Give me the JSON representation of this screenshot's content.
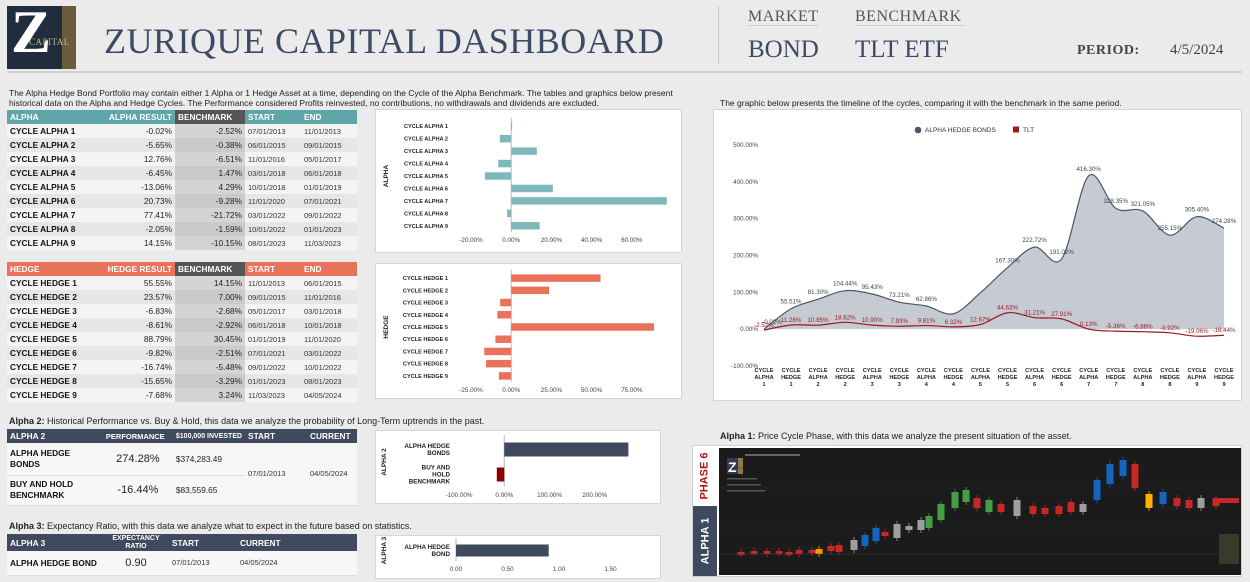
{
  "header": {
    "logo_letter": "Z",
    "logo_sub": "CAPITAL",
    "title": "ZURIQUE CAPITAL DASHBOARD",
    "market_label": "MARKET",
    "market_value": "BOND",
    "benchmark_label": "BENCHMARK",
    "benchmark_value": "TLT ETF",
    "period_label": "PERIOD:",
    "period_value": "4/5/2024"
  },
  "intro": "The Alpha Hedge Bond Portfolio may contain either 1 Alpha or 1 Hedge Asset at a time, depending on the Cycle of the Alpha Benchmark. The tables and graphics below present historical data on the Alpha and Hedge Cycles. The Performance considered Profits reinvested, no contributions, no withdrawals and dividends are excluded.",
  "timeline_intro": "The graphic below presents the timeline of the cycles, comparing it with the benchmark in the same period.",
  "alpha_table": {
    "headers": [
      "ALPHA",
      "ALPHA RESULT",
      "BENCHMARK",
      "START",
      "END"
    ],
    "rows": [
      {
        "name": "CYCLE ALPHA 1",
        "result": "-0.02%",
        "bench": "-2.52%",
        "start": "07/01/2013",
        "end": "11/01/2013"
      },
      {
        "name": "CYCLE ALPHA 2",
        "result": "-5.65%",
        "bench": "-0.38%",
        "start": "06/01/2015",
        "end": "09/01/2015"
      },
      {
        "name": "CYCLE ALPHA 3",
        "result": "12.76%",
        "bench": "-6.51%",
        "start": "11/01/2016",
        "end": "05/01/2017"
      },
      {
        "name": "CYCLE ALPHA 4",
        "result": "-6.45%",
        "bench": "1.47%",
        "start": "03/01/2018",
        "end": "06/01/2018"
      },
      {
        "name": "CYCLE ALPHA 5",
        "result": "-13.06%",
        "bench": "4.29%",
        "start": "10/01/2018",
        "end": "01/01/2019"
      },
      {
        "name": "CYCLE ALPHA 6",
        "result": "20.73%",
        "bench": "-9.28%",
        "start": "11/01/2020",
        "end": "07/01/2021"
      },
      {
        "name": "CYCLE ALPHA 7",
        "result": "77.41%",
        "bench": "-21.72%",
        "start": "03/01/2022",
        "end": "09/01/2022"
      },
      {
        "name": "CYCLE ALPHA 8",
        "result": "-2.05%",
        "bench": "-1.59%",
        "start": "10/01/2022",
        "end": "01/01/2023"
      },
      {
        "name": "CYCLE ALPHA 9",
        "result": "14.15%",
        "bench": "-10.15%",
        "start": "08/01/2023",
        "end": "11/03/2023"
      }
    ]
  },
  "hedge_table": {
    "headers": [
      "HEDGE",
      "HEDGE RESULT",
      "BENCHMARK",
      "START",
      "END"
    ],
    "rows": [
      {
        "name": "CYCLE HEDGE 1",
        "result": "55.55%",
        "bench": "14.15%",
        "start": "11/01/2013",
        "end": "06/01/2015"
      },
      {
        "name": "CYCLE HEDGE 2",
        "result": "23.57%",
        "bench": "7.00%",
        "start": "09/01/2015",
        "end": "11/01/2016"
      },
      {
        "name": "CYCLE HEDGE 3",
        "result": "-6.83%",
        "bench": "-2.68%",
        "start": "05/01/2017",
        "end": "03/01/2018"
      },
      {
        "name": "CYCLE HEDGE 4",
        "result": "-8.61%",
        "bench": "-2.92%",
        "start": "06/01/2018",
        "end": "10/01/2018"
      },
      {
        "name": "CYCLE HEDGE 5",
        "result": "88.79%",
        "bench": "30.45%",
        "start": "01/01/2019",
        "end": "11/01/2020"
      },
      {
        "name": "CYCLE HEDGE 6",
        "result": "-9.82%",
        "bench": "-2.51%",
        "start": "07/01/2021",
        "end": "03/01/2022"
      },
      {
        "name": "CYCLE HEDGE 7",
        "result": "-16.74%",
        "bench": "-5.48%",
        "start": "09/01/2022",
        "end": "10/01/2022"
      },
      {
        "name": "CYCLE HEDGE 8",
        "result": "-15.65%",
        "bench": "-3.29%",
        "start": "01/01/2023",
        "end": "08/01/2023"
      },
      {
        "name": "CYCLE HEDGE 9",
        "result": "-7.68%",
        "bench": "3.24%",
        "start": "11/03/2023",
        "end": "04/05/2024"
      }
    ]
  },
  "alpha2": {
    "title_bold": "Alpha 2:",
    "title_rest": " Historical Performance vs. Buy & Hold, this data we analyze the probability of Long-Term uptrends in the past.",
    "headers": [
      "ALPHA 2",
      "PERFORMANCE",
      "$100,000 INVESTED",
      "START",
      "CURRENT"
    ],
    "rows": [
      {
        "name": "ALPHA HEDGE BONDS",
        "perf": "274.28%",
        "invested": "$374,283.49"
      },
      {
        "name": "BUY AND HOLD BENCHMARK",
        "perf": "-16.44%",
        "invested": "$83,559.65"
      }
    ],
    "start": "07/01/2013",
    "current": "04/05/2024"
  },
  "alpha3": {
    "title_bold": "Alpha 3:",
    "title_rest": " Expectancy Ratio, with this data we analyze what to expect in the future based on statistics.",
    "headers": [
      "ALPHA 3",
      "EXPECTANCY RATIO",
      "START",
      "CURRENT"
    ],
    "row": {
      "name": "ALPHA HEDGE BOND",
      "ratio": "0.90",
      "start": "07/01/2013",
      "current": "04/05/2024"
    }
  },
  "alpha1": {
    "title_bold": "Alpha 1:",
    "title_rest": " Price Cycle Phase, with this data we analyze the present situation of the asset.",
    "phase_label": "PHASE 6",
    "alpha_label": "ALPHA 1"
  },
  "colors": {
    "teal": "#7fb8bb",
    "coral": "#e8735a",
    "navy": "#3f4a5e",
    "area": "#c5cad3",
    "area_line": "#4b5568",
    "tlt_line": "#9b1b1b",
    "darkred": "#8b0000"
  },
  "chart_data": [
    {
      "type": "bar",
      "orientation": "horizontal",
      "title": "",
      "ylabel": "ALPHA",
      "categories": [
        "CYCLE ALPHA 1",
        "CYCLE ALPHA 2",
        "CYCLE ALPHA 3",
        "CYCLE ALPHA 4",
        "CYCLE ALPHA 5",
        "CYCLE ALPHA 6",
        "CYCLE ALPHA 7",
        "CYCLE ALPHA 8",
        "CYCLE ALPHA 9"
      ],
      "values": [
        -0.02,
        -5.65,
        12.76,
        -6.45,
        -13.06,
        20.73,
        77.41,
        -2.05,
        14.15
      ],
      "xlim": [
        -20,
        80
      ],
      "xticks": [
        "-20.00%",
        "0.00%",
        "20.00%",
        "40.00%",
        "60.00%"
      ]
    },
    {
      "type": "bar",
      "orientation": "horizontal",
      "title": "",
      "ylabel": "HEDGE",
      "categories": [
        "CYCLE HEDGE 1",
        "CYCLE HEDGE 2",
        "CYCLE HEDGE 3",
        "CYCLE HEDGE 4",
        "CYCLE HEDGE 5",
        "CYCLE HEDGE 6",
        "CYCLE HEDGE 7",
        "CYCLE HEDGE 8",
        "CYCLE HEDGE 9"
      ],
      "values": [
        55.55,
        23.57,
        -6.83,
        -8.61,
        88.79,
        -9.82,
        -16.74,
        -15.65,
        -7.68
      ],
      "xlim": [
        -25,
        100
      ],
      "xticks": [
        "-25.00%",
        "0.00%",
        "25.00%",
        "50.00%",
        "75.00%"
      ]
    },
    {
      "type": "area",
      "title": "",
      "legend": [
        "ALPHA HEDGE BONDS",
        "TLT"
      ],
      "legend_position": "top-center",
      "x": [
        "CYCLE ALPHA 1",
        "CYCLE HEDGE 1",
        "CYCLE ALPHA 2",
        "CYCLE HEDGE 2",
        "CYCLE ALPHA 3",
        "CYCLE HEDGE 3",
        "CYCLE ALPHA 4",
        "CYCLE HEDGE 4",
        "CYCLE ALPHA 5",
        "CYCLE HEDGE 5",
        "CYCLE ALPHA 6",
        "CYCLE HEDGE 6",
        "CYCLE ALPHA 7",
        "CYCLE HEDGE 7",
        "CYCLE ALPHA 8",
        "CYCLE HEDGE 8",
        "CYCLE ALPHA 9",
        "CYCLE HEDGE 9"
      ],
      "series": [
        {
          "name": "ALPHA HEDGE BONDS",
          "points": [
            [
              0,
              -0.02
            ],
            [
              1,
              55.51
            ],
            [
              2,
              81.3
            ],
            [
              3,
              104.44
            ],
            [
              4,
              95.43
            ],
            [
              5,
              73.21
            ],
            [
              6,
              62.86
            ],
            [
              7,
              41.87
            ],
            [
              8,
              99.0
            ],
            [
              9,
              167.3
            ],
            [
              10,
              222.72
            ],
            [
              11,
              191.02
            ],
            [
              12,
              416.3
            ],
            [
              13,
              328.35
            ],
            [
              14,
              321.05
            ],
            [
              15,
              255.15
            ],
            [
              16,
              305.4
            ],
            [
              17,
              274.28
            ]
          ],
          "labels": [
            {
              "i": 0,
              "text": "-0.02%"
            },
            {
              "i": 1,
              "text": "55.51%"
            },
            {
              "i": 2,
              "text": "81.30%"
            },
            {
              "i": 3,
              "text": "104.44%"
            },
            {
              "i": 4,
              "text": "95.43%"
            },
            {
              "i": 5,
              "text": "73.21%"
            },
            {
              "i": 6,
              "text": "62.86%"
            },
            {
              "i": 9,
              "text": "167.30%"
            },
            {
              "i": 10,
              "text": "222.72%"
            },
            {
              "i": 11,
              "text": "191.02%"
            },
            {
              "i": 12,
              "text": "416.30%"
            },
            {
              "i": 13,
              "text": "328.35%"
            },
            {
              "i": 14,
              "text": "321.05%"
            },
            {
              "i": 15,
              "text": "255.15%"
            },
            {
              "i": 16,
              "text": "305.40%"
            },
            {
              "i": 17,
              "text": "274.28%"
            }
          ]
        },
        {
          "name": "TLT",
          "points": [
            [
              0,
              -2.52
            ],
            [
              1,
              11.28
            ],
            [
              2,
              10.85
            ],
            [
              3,
              18.62
            ],
            [
              4,
              10.9
            ],
            [
              5,
              7.93
            ],
            [
              6,
              9.81
            ],
            [
              7,
              6.32
            ],
            [
              8,
              12.67
            ],
            [
              9,
              44.63
            ],
            [
              10,
              31.21
            ],
            [
              11,
              27.91
            ],
            [
              12,
              0.13
            ],
            [
              13,
              -5.36
            ],
            [
              14,
              -6.86
            ],
            [
              15,
              -9.92
            ],
            [
              16,
              -19.06
            ],
            [
              17,
              -16.44
            ]
          ],
          "labels": [
            {
              "i": 0,
              "text": "-2.52%"
            },
            {
              "i": 1,
              "text": "11.28%"
            },
            {
              "i": 2,
              "text": "10.85%"
            },
            {
              "i": 3,
              "text": "18.62%"
            },
            {
              "i": 4,
              "text": "10.90%"
            },
            {
              "i": 5,
              "text": "7.93%"
            },
            {
              "i": 6,
              "text": "9.81%"
            },
            {
              "i": 7,
              "text": "6.32%"
            },
            {
              "i": 8,
              "text": "12.67%"
            },
            {
              "i": 9,
              "text": "44.63%"
            },
            {
              "i": 10,
              "text": "31.21%"
            },
            {
              "i": 11,
              "text": "27.91%"
            },
            {
              "i": 12,
              "text": "0.13%"
            },
            {
              "i": 13,
              "text": "-5.36%"
            },
            {
              "i": 14,
              "text": "-6.86%"
            },
            {
              "i": 15,
              "text": "-9.92%"
            },
            {
              "i": 16,
              "text": "-19.06%"
            },
            {
              "i": 17,
              "text": "-16.44%"
            }
          ]
        }
      ],
      "ylim": [
        -100,
        500
      ],
      "yticks": [
        "-100.00%",
        "0.00%",
        "100.00%",
        "200.00%",
        "300.00%",
        "400.00%",
        "500.00%"
      ]
    },
    {
      "type": "bar",
      "orientation": "horizontal",
      "ylabel": "ALPHA 2",
      "categories": [
        "ALPHA HEDGE BONDS",
        "BUY AND HOLD BENCHMARK"
      ],
      "values": [
        274.28,
        -16.44
      ],
      "xlim": [
        -100,
        300
      ],
      "xticks": [
        "-100.00%",
        "0.00%",
        "100.00%",
        "200.00%"
      ]
    },
    {
      "type": "bar",
      "orientation": "horizontal",
      "ylabel": "ALPHA 3",
      "categories": [
        "ALPHA HEDGE BOND"
      ],
      "values": [
        0.9
      ],
      "xlim": [
        0,
        2
      ],
      "xticks": [
        "0.00",
        "0.50",
        "1.00",
        "1.50"
      ]
    }
  ]
}
